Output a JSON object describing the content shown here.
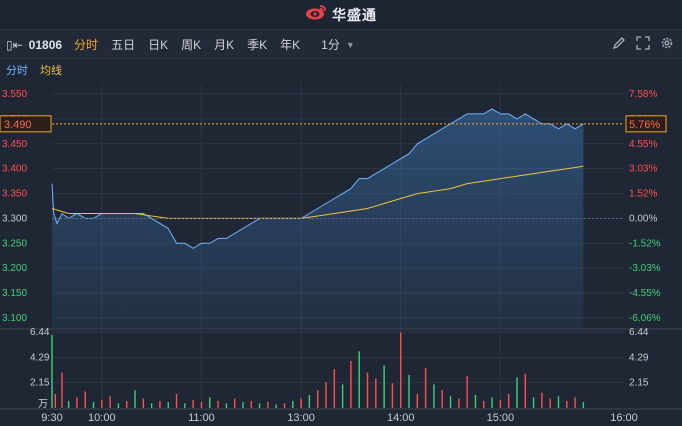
{
  "app": {
    "brand": "华盛通"
  },
  "toolbar": {
    "code": "01806",
    "tabs": [
      "分时",
      "五日",
      "日K",
      "周K",
      "月K",
      "季K",
      "年K"
    ],
    "active_tab": "分时",
    "period": "1分"
  },
  "subtabs": {
    "intraday": "分时",
    "avg_line": "均线"
  },
  "chart_data": [
    {
      "type": "line",
      "series": [
        {
          "name": "分时",
          "color": "#6fb4ff",
          "x": [
            "09:30",
            "09:31",
            "09:33",
            "09:36",
            "09:40",
            "09:45",
            "09:50",
            "09:55",
            "10:00",
            "10:05",
            "10:10",
            "10:15",
            "10:20",
            "10:25",
            "10:30",
            "10:35",
            "10:40",
            "10:45",
            "10:50",
            "10:55",
            "11:00",
            "11:05",
            "11:10",
            "11:15",
            "11:20",
            "11:25",
            "11:30",
            "11:35",
            "11:40",
            "11:45",
            "11:50",
            "11:55",
            "12:00",
            "13:00",
            "13:05",
            "13:10",
            "13:15",
            "13:20",
            "13:25",
            "13:30",
            "13:35",
            "13:40",
            "13:45",
            "13:50",
            "13:55",
            "14:00",
            "14:05",
            "14:10",
            "14:15",
            "14:20",
            "14:25",
            "14:30",
            "14:35",
            "14:40",
            "14:45",
            "14:50",
            "14:55",
            "15:00",
            "15:05",
            "15:10",
            "15:15",
            "15:20",
            "15:25",
            "15:30",
            "15:35",
            "15:40",
            "15:45",
            "15:50"
          ],
          "values": [
            3.37,
            3.31,
            3.29,
            3.31,
            3.3,
            3.31,
            3.3,
            3.3,
            3.31,
            3.31,
            3.31,
            3.31,
            3.31,
            3.31,
            3.3,
            3.29,
            3.28,
            3.25,
            3.25,
            3.24,
            3.25,
            3.25,
            3.26,
            3.26,
            3.27,
            3.28,
            3.29,
            3.3,
            3.3,
            3.3,
            3.3,
            3.3,
            3.3,
            3.3,
            3.31,
            3.32,
            3.33,
            3.34,
            3.35,
            3.36,
            3.38,
            3.38,
            3.39,
            3.4,
            3.41,
            3.42,
            3.43,
            3.45,
            3.46,
            3.47,
            3.48,
            3.49,
            3.5,
            3.51,
            3.51,
            3.51,
            3.52,
            3.51,
            3.51,
            3.5,
            3.51,
            3.5,
            3.49,
            3.49,
            3.48,
            3.49,
            3.48,
            3.49
          ]
        },
        {
          "name": "均线",
          "color": "#f0c239",
          "x": [
            "09:30",
            "09:40",
            "09:50",
            "10:00",
            "10:10",
            "10:20",
            "10:30",
            "10:40",
            "10:50",
            "11:00",
            "11:10",
            "11:20",
            "11:30",
            "11:40",
            "11:50",
            "12:00",
            "13:00",
            "13:10",
            "13:20",
            "13:30",
            "13:40",
            "13:50",
            "14:00",
            "14:10",
            "14:20",
            "14:30",
            "14:40",
            "14:50",
            "15:00",
            "15:10",
            "15:20",
            "15:30",
            "15:40",
            "15:50"
          ],
          "values": [
            3.32,
            3.31,
            3.31,
            3.31,
            3.31,
            3.31,
            3.305,
            3.3,
            3.3,
            3.3,
            3.3,
            3.3,
            3.3,
            3.3,
            3.3,
            3.3,
            3.3,
            3.305,
            3.31,
            3.315,
            3.32,
            3.33,
            3.34,
            3.35,
            3.355,
            3.36,
            3.37,
            3.375,
            3.38,
            3.385,
            3.39,
            3.395,
            3.4,
            3.405
          ]
        }
      ],
      "y_left_ticks": [
        "3.550",
        "3.500",
        "3.450",
        "3.400",
        "3.350",
        "3.300",
        "3.250",
        "3.200",
        "3.150",
        "3.100"
      ],
      "y_right_ticks": [
        "7.58%",
        "6.06%",
        "4.55%",
        "3.03%",
        "1.52%",
        "0.00%",
        "-1.52%",
        "-3.03%",
        "-4.55%",
        "-6.06%"
      ],
      "ylim": [
        3.08,
        3.57
      ],
      "prev_close": 3.3,
      "last_price": "3.490",
      "last_change": "5.76%"
    },
    {
      "type": "bar",
      "title": "",
      "unit": "万",
      "y_ticks": [
        "6.44",
        "4.29",
        "2.15"
      ],
      "ylim": [
        0,
        6.44
      ],
      "x_ticks": [
        "9:30",
        "10:00",
        "11:00",
        "13:00",
        "14:00",
        "15:00",
        "16:00"
      ],
      "up_color": "#ff4f4f",
      "down_color": "#3ed07a",
      "bars": [
        {
          "t": "09:30",
          "v": 6.2,
          "up": false
        },
        {
          "t": "09:32",
          "v": 1.2,
          "up": true
        },
        {
          "t": "09:36",
          "v": 3.0,
          "up": true
        },
        {
          "t": "09:40",
          "v": 0.6,
          "up": false
        },
        {
          "t": "09:45",
          "v": 0.9,
          "up": true
        },
        {
          "t": "09:50",
          "v": 1.4,
          "up": true
        },
        {
          "t": "09:55",
          "v": 0.5,
          "up": false
        },
        {
          "t": "10:00",
          "v": 0.7,
          "up": true
        },
        {
          "t": "10:05",
          "v": 1.0,
          "up": true
        },
        {
          "t": "10:10",
          "v": 0.4,
          "up": false
        },
        {
          "t": "10:15",
          "v": 0.6,
          "up": true
        },
        {
          "t": "10:20",
          "v": 1.5,
          "up": false
        },
        {
          "t": "10:25",
          "v": 0.8,
          "up": true
        },
        {
          "t": "10:30",
          "v": 0.4,
          "up": false
        },
        {
          "t": "10:35",
          "v": 0.6,
          "up": true
        },
        {
          "t": "10:40",
          "v": 0.5,
          "up": false
        },
        {
          "t": "10:45",
          "v": 1.2,
          "up": true
        },
        {
          "t": "10:50",
          "v": 0.4,
          "up": false
        },
        {
          "t": "10:55",
          "v": 0.7,
          "up": true
        },
        {
          "t": "11:00",
          "v": 0.5,
          "up": true
        },
        {
          "t": "11:05",
          "v": 0.9,
          "up": false
        },
        {
          "t": "11:10",
          "v": 0.6,
          "up": true
        },
        {
          "t": "11:15",
          "v": 0.4,
          "up": false
        },
        {
          "t": "11:20",
          "v": 0.8,
          "up": true
        },
        {
          "t": "11:25",
          "v": 0.5,
          "up": false
        },
        {
          "t": "11:30",
          "v": 0.6,
          "up": true
        },
        {
          "t": "11:35",
          "v": 0.4,
          "up": false
        },
        {
          "t": "11:40",
          "v": 0.5,
          "up": true
        },
        {
          "t": "11:45",
          "v": 0.3,
          "up": false
        },
        {
          "t": "11:50",
          "v": 0.4,
          "up": true
        },
        {
          "t": "11:55",
          "v": 0.6,
          "up": false
        },
        {
          "t": "12:00",
          "v": 0.5,
          "up": true
        },
        {
          "t": "13:00",
          "v": 0.8,
          "up": true
        },
        {
          "t": "13:05",
          "v": 1.1,
          "up": false
        },
        {
          "t": "13:10",
          "v": 1.5,
          "up": true
        },
        {
          "t": "13:15",
          "v": 2.2,
          "up": true
        },
        {
          "t": "13:20",
          "v": 3.3,
          "up": true
        },
        {
          "t": "13:25",
          "v": 2.0,
          "up": false
        },
        {
          "t": "13:30",
          "v": 4.0,
          "up": true
        },
        {
          "t": "13:35",
          "v": 4.8,
          "up": false
        },
        {
          "t": "13:40",
          "v": 3.0,
          "up": true
        },
        {
          "t": "13:45",
          "v": 2.5,
          "up": true
        },
        {
          "t": "13:50",
          "v": 3.6,
          "up": false
        },
        {
          "t": "13:55",
          "v": 2.1,
          "up": true
        },
        {
          "t": "14:00",
          "v": 6.4,
          "up": true
        },
        {
          "t": "14:05",
          "v": 2.8,
          "up": false
        },
        {
          "t": "14:10",
          "v": 1.2,
          "up": true
        },
        {
          "t": "14:15",
          "v": 3.4,
          "up": true
        },
        {
          "t": "14:20",
          "v": 2.0,
          "up": false
        },
        {
          "t": "14:25",
          "v": 1.5,
          "up": true
        },
        {
          "t": "14:30",
          "v": 1.0,
          "up": false
        },
        {
          "t": "14:35",
          "v": 0.8,
          "up": true
        },
        {
          "t": "14:40",
          "v": 2.7,
          "up": true
        },
        {
          "t": "14:45",
          "v": 1.1,
          "up": false
        },
        {
          "t": "14:50",
          "v": 0.6,
          "up": true
        },
        {
          "t": "14:55",
          "v": 0.9,
          "up": false
        },
        {
          "t": "15:00",
          "v": 0.7,
          "up": true
        },
        {
          "t": "15:05",
          "v": 1.2,
          "up": true
        },
        {
          "t": "15:10",
          "v": 2.6,
          "up": false
        },
        {
          "t": "15:15",
          "v": 2.9,
          "up": true
        },
        {
          "t": "15:20",
          "v": 0.9,
          "up": false
        },
        {
          "t": "15:25",
          "v": 1.3,
          "up": true
        },
        {
          "t": "15:30",
          "v": 0.8,
          "up": true
        },
        {
          "t": "15:35",
          "v": 1.0,
          "up": false
        },
        {
          "t": "15:40",
          "v": 0.6,
          "up": true
        },
        {
          "t": "15:45",
          "v": 0.9,
          "up": true
        },
        {
          "t": "15:50",
          "v": 0.5,
          "up": false
        }
      ]
    }
  ],
  "colors": {
    "accent": "#f5a623",
    "up": "#ff4f4f",
    "down": "#3ed07a",
    "price_line": "#6fb4ff",
    "avg_line": "#f0c239"
  },
  "icons": [
    "weibo-logo-icon",
    "bracket-arrow-icon",
    "pen-icon",
    "expand-icon",
    "settings-icon",
    "chevron-down-icon"
  ]
}
